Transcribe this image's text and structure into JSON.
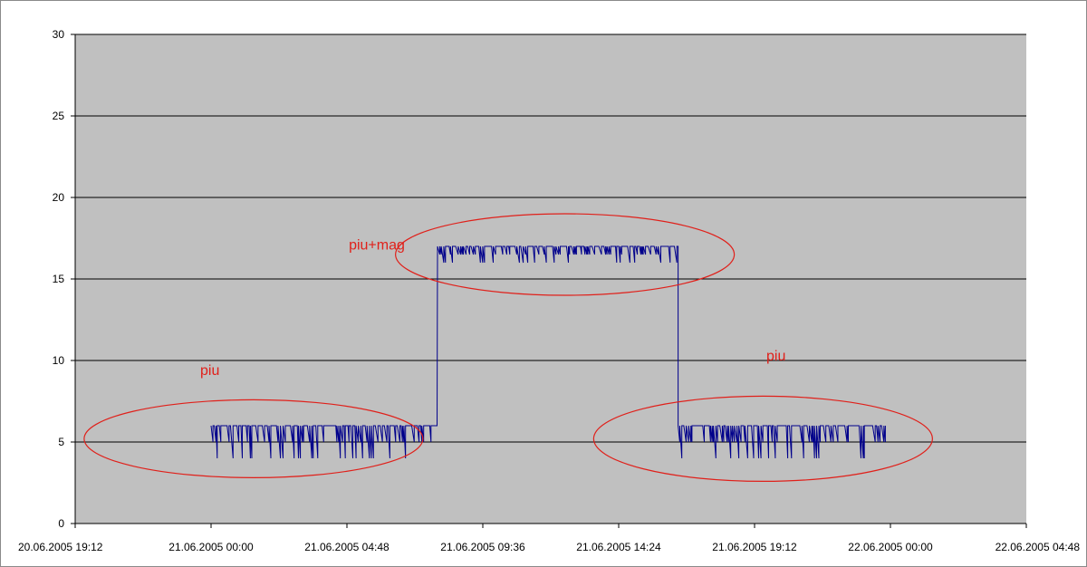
{
  "chart_data": {
    "type": "line",
    "title": "",
    "xlabel": "",
    "ylabel": "",
    "ylim": [
      0,
      30
    ],
    "yticks": [
      0,
      5,
      10,
      15,
      20,
      25,
      30
    ],
    "xlim": [
      "2005-06-20T19:12",
      "2005-06-22T04:48"
    ],
    "xticks": [
      "20.06.2005 19:12",
      "21.06.2005 00:00",
      "21.06.2005 04:48",
      "21.06.2005 09:36",
      "21.06.2005 14:24",
      "21.06.2005 19:12",
      "22.06.2005 00:00",
      "22.06.2005 04:48"
    ],
    "grid": "horizontal",
    "legend": "none",
    "colors": {
      "plot_bg": "#c0c0c0",
      "line": "#00008b",
      "annotation": "#e0201a",
      "grid": "#000000"
    },
    "series": [
      {
        "segments": [
          {
            "x_start": "2005-06-21T00:00",
            "x_end": "2005-06-21T08:00",
            "high": 6,
            "low": 4
          },
          {
            "x_start": "2005-06-21T08:00",
            "x_end": "2005-06-21T16:30",
            "high": 17,
            "low": 16
          },
          {
            "x_start": "2005-06-21T16:30",
            "x_end": "2005-06-21T23:50",
            "high": 6,
            "low": 4
          }
        ]
      }
    ],
    "annotations": [
      {
        "text": "piu",
        "x": "2005-06-21T00:00",
        "y": 9.1
      },
      {
        "text": "piu+mag",
        "x": "2005-06-21T05:15",
        "y": 16.8
      },
      {
        "text": "piu",
        "x": "2005-06-21T20:00",
        "y": 10
      }
    ]
  }
}
